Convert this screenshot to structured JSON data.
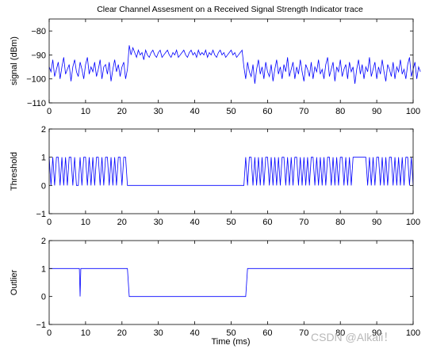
{
  "figure": {
    "title": "Clear Channel Assesment on a Received Signal Strength Indicator trace",
    "xlabel": "Time (ms)",
    "watermark": "CSDN @Alkali！"
  },
  "chart_data": [
    {
      "type": "line",
      "ylabel": "signal (dBm)",
      "xlim": [
        0,
        100
      ],
      "ylim": [
        -110,
        -75
      ],
      "xticks": [
        "0",
        "10",
        "20",
        "30",
        "40",
        "50",
        "60",
        "70",
        "80",
        "90",
        "100"
      ],
      "yticks": [
        "−110",
        "−100",
        "−90",
        "−80"
      ],
      "line_color": "#0000ff",
      "series": [
        {
          "x_start": 0,
          "x_step": 0.5,
          "values": [
            -95,
            -97,
            -92,
            -99,
            -96,
            -93,
            -100,
            -95,
            -91,
            -98,
            -96,
            -94,
            -101,
            -95,
            -92,
            -97,
            -99,
            -93,
            -96,
            -100,
            -94,
            -91,
            -98,
            -95,
            -97,
            -93,
            -99,
            -96,
            -92,
            -100,
            -95,
            -94,
            -98,
            -93,
            -101,
            -96,
            -92,
            -97,
            -94,
            -99,
            -95,
            -93,
            -100,
            -96,
            -86,
            -90,
            -87,
            -89,
            -91,
            -88,
            -90,
            -89,
            -92,
            -88,
            -90,
            -91,
            -89,
            -88,
            -90,
            -91,
            -89,
            -88,
            -91,
            -90,
            -89,
            -88,
            -90,
            -91,
            -89,
            -90,
            -88,
            -91,
            -90,
            -89,
            -88,
            -90,
            -91,
            -89,
            -88,
            -90,
            -89,
            -91,
            -88,
            -90,
            -89,
            -90,
            -88,
            -91,
            -89,
            -90,
            -88,
            -90,
            -91,
            -89,
            -88,
            -90,
            -89,
            -91,
            -90,
            -89,
            -88,
            -90,
            -89,
            -91,
            -90,
            -89,
            -88,
            -95,
            -100,
            -93,
            -97,
            -99,
            -94,
            -102,
            -96,
            -92,
            -98,
            -95,
            -100,
            -93,
            -97,
            -99,
            -94,
            -101,
            -96,
            -92,
            -98,
            -95,
            -100,
            -94,
            -97,
            -91,
            -99,
            -96,
            -93,
            -100,
            -95,
            -98,
            -92,
            -97,
            -101,
            -94,
            -96,
            -99,
            -93,
            -100,
            -95,
            -97,
            -92,
            -98,
            -96,
            -100,
            -94,
            -91,
            -99,
            -96,
            -93,
            -101,
            -95,
            -97,
            -92,
            -99,
            -96,
            -94,
            -100,
            -93,
            -97,
            -95,
            -102,
            -96,
            -92,
            -98,
            -94,
            -100,
            -95,
            -97,
            -91,
            -99,
            -96,
            -93,
            -100,
            -95,
            -98,
            -92,
            -97,
            -101,
            -94,
            -96,
            -99,
            -93,
            -100,
            -95,
            -97,
            -92,
            -98,
            -96,
            -100,
            -94,
            -91,
            -99,
            -96,
            -93,
            -100,
            -95,
            -97
          ]
        }
      ]
    },
    {
      "type": "line",
      "ylabel": "Threshold",
      "xlim": [
        0,
        100
      ],
      "ylim": [
        -1,
        2
      ],
      "xticks": [
        "0",
        "10",
        "20",
        "30",
        "40",
        "50",
        "60",
        "70",
        "80",
        "90",
        "100"
      ],
      "yticks": [
        "−1",
        "0",
        "1",
        "2"
      ],
      "line_color": "#0000ff",
      "series": [
        {
          "x_start": 0,
          "x_step": 0.5,
          "values": [
            1,
            0,
            1,
            0,
            1,
            1,
            0,
            1,
            0,
            1,
            0,
            1,
            1,
            0,
            1,
            0,
            0,
            1,
            0,
            1,
            1,
            0,
            1,
            0,
            1,
            0,
            1,
            1,
            0,
            1,
            0,
            1,
            1,
            0,
            1,
            0,
            1,
            0,
            1,
            1,
            0,
            1,
            1,
            0,
            0,
            0,
            0,
            0,
            0,
            0,
            0,
            0,
            0,
            0,
            0,
            0,
            0,
            0,
            0,
            0,
            0,
            0,
            0,
            0,
            0,
            0,
            0,
            0,
            0,
            0,
            0,
            0,
            0,
            0,
            0,
            0,
            0,
            0,
            0,
            0,
            0,
            0,
            0,
            0,
            0,
            0,
            0,
            0,
            0,
            0,
            0,
            0,
            0,
            0,
            0,
            0,
            0,
            0,
            0,
            0,
            0,
            0,
            0,
            0,
            0,
            0,
            0,
            0,
            1,
            0,
            1,
            1,
            0,
            1,
            0,
            1,
            0,
            1,
            0,
            1,
            1,
            0,
            1,
            0,
            1,
            0,
            1,
            0,
            1,
            1,
            0,
            1,
            0,
            1,
            0,
            1,
            1,
            0,
            1,
            0,
            1,
            0,
            1,
            0,
            1,
            1,
            0,
            1,
            0,
            1,
            0,
            1,
            0,
            1,
            1,
            0,
            1,
            0,
            1,
            0,
            1,
            1,
            0,
            1,
            0,
            1,
            0,
            1,
            1,
            1,
            1,
            1,
            1,
            1,
            1,
            0,
            1,
            0,
            1,
            0,
            1,
            1,
            0,
            1,
            0,
            1,
            0,
            1,
            1,
            0,
            1,
            0,
            1,
            0,
            1,
            0,
            1,
            1,
            0,
            1,
            0
          ]
        }
      ]
    },
    {
      "type": "line",
      "ylabel": "Outlier",
      "xlim": [
        0,
        100
      ],
      "ylim": [
        -1,
        2
      ],
      "xticks": [
        "0",
        "10",
        "20",
        "30",
        "40",
        "50",
        "60",
        "70",
        "80",
        "90",
        "100"
      ],
      "yticks": [
        "−1",
        "0",
        "1",
        "2"
      ],
      "line_color": "#0000ff",
      "series": [
        {
          "x": [
            0,
            8.3,
            8.5,
            8.7,
            21.5,
            22,
            54,
            54.5,
            100
          ],
          "values": [
            1,
            1,
            0,
            1,
            1,
            0,
            0,
            1,
            1
          ]
        }
      ]
    }
  ]
}
